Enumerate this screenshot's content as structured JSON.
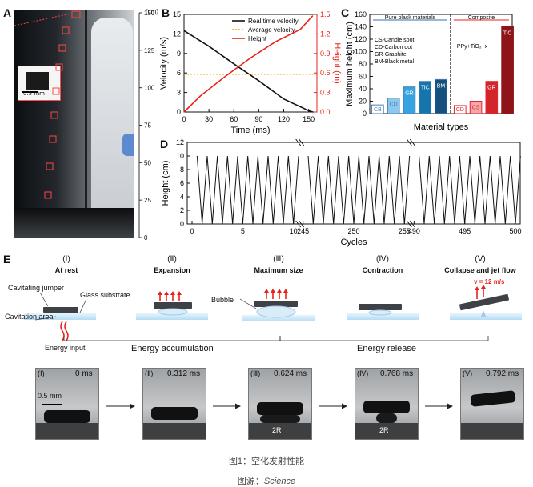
{
  "panel_labels": [
    "A",
    "B",
    "C",
    "D",
    "E"
  ],
  "panelA": {
    "scale_unit": "(cm)",
    "scale_ticks": [
      150,
      125,
      100,
      75,
      50,
      25,
      0
    ],
    "inset_scale": "0.5 mm"
  },
  "chart_data": [
    {
      "type": "line",
      "panel": "B",
      "xlabel": "Time (ms)",
      "ylabel_left": "Velocity (m/s)",
      "ylabel_right": "Height (m)",
      "xlim": [
        0,
        160
      ],
      "x_ticks": [
        0,
        30,
        60,
        90,
        120,
        150
      ],
      "ylim_left": [
        0,
        15
      ],
      "y_ticks_left": [
        0,
        3,
        6,
        9,
        12,
        15
      ],
      "ylim_right": [
        0,
        1.5
      ],
      "y_ticks_right": [
        0.0,
        0.3,
        0.6,
        0.9,
        1.2,
        1.5
      ],
      "series": [
        {
          "name": "Real time velocity",
          "color": "#111111",
          "axis": "left",
          "x": [
            0,
            10,
            30,
            60,
            90,
            120,
            150,
            155
          ],
          "y": [
            12.5,
            11.7,
            10.1,
            7.4,
            4.8,
            2.0,
            0.2,
            0.0
          ]
        },
        {
          "name": "Average velocity",
          "color": "#f2a600",
          "axis": "left",
          "dash": "dotted",
          "x": [
            0,
            160
          ],
          "y": [
            5.8,
            5.8
          ]
        },
        {
          "name": "Height",
          "color": "#e8221b",
          "axis": "right",
          "x": [
            0,
            20,
            50,
            80,
            110,
            140,
            155
          ],
          "y": [
            0.0,
            0.25,
            0.55,
            0.83,
            1.08,
            1.27,
            1.48
          ]
        }
      ]
    },
    {
      "type": "bar",
      "panel": "C",
      "xlabel": "Material types",
      "ylabel": "Maximum height (cm)",
      "ylim": [
        0,
        160
      ],
      "y_ticks": [
        0,
        20,
        40,
        60,
        80,
        100,
        120,
        140,
        160
      ],
      "categories": [
        "CB",
        "CD",
        "GR",
        "TiC",
        "BM",
        "CD",
        "CS",
        "GR",
        "TiC"
      ],
      "values": [
        14,
        25,
        43,
        52,
        55,
        13,
        20,
        52,
        140
      ],
      "colors": [
        "#ffffff",
        "#8cc9ef",
        "#36a3e0",
        "#1775ad",
        "#15517e",
        "#ffffff",
        "#f6a7a9",
        "#d3242b",
        "#8e1419"
      ],
      "edge_colors": [
        "#4e7fb0",
        "#4e7fb0",
        "#4e7fb0",
        "#4e7fb0",
        "#4e7fb0",
        "#e8222b",
        "#e8222b",
        "#e8222b",
        "#8e1419"
      ],
      "group_labels": [
        "Pure black materials",
        "Composite"
      ],
      "notes": [
        "CS-Candle soot",
        "CD-Carbon dot",
        "GR-Graphite",
        "BM-Black metal"
      ],
      "composite_formula": "PPy+TiO₂+x"
    },
    {
      "type": "line",
      "panel": "D",
      "xlabel": "Cycles",
      "ylabel": "Height (cm)",
      "ylim": [
        0,
        12
      ],
      "y_ticks": [
        0,
        2,
        4,
        6,
        8,
        10,
        12
      ],
      "peak": 10,
      "segments": [
        {
          "x_ticks": [
            0,
            5,
            10
          ],
          "range": [
            0,
            10
          ]
        },
        {
          "x_ticks": [
            245,
            250,
            255
          ],
          "range": [
            245,
            255
          ]
        },
        {
          "x_ticks": [
            490,
            495,
            500
          ],
          "range": [
            490,
            500
          ]
        }
      ]
    }
  ],
  "panelE": {
    "stages": [
      {
        "roman": "(Ⅰ)",
        "title": "At rest"
      },
      {
        "roman": "(Ⅱ)",
        "title": "Expansion"
      },
      {
        "roman": "(Ⅲ)",
        "title": "Maximum size"
      },
      {
        "roman": "(Ⅳ)",
        "title": "Contraction"
      },
      {
        "roman": "(Ⅴ)",
        "title": "Collapse and jet flow"
      }
    ],
    "labels": {
      "cavitating_jumper": "Cavitating jumper",
      "glass_substrate": "Glass substrate",
      "cavitation_area": "Cavitation area",
      "energy_input": "Energy input",
      "bubble": "Bubble",
      "velocity": "v = 12 m/s",
      "energy_accumulation": "Energy accumulation",
      "energy_release": "Energy release"
    },
    "frames": [
      {
        "roman": "(Ⅰ)",
        "time": "0 ms"
      },
      {
        "roman": "(Ⅱ)",
        "time": "0.312 ms"
      },
      {
        "roman": "(Ⅲ)",
        "time": "0.624 ms",
        "annotation": "2R"
      },
      {
        "roman": "(Ⅳ)",
        "time": "0.768 ms",
        "annotation": "2R"
      },
      {
        "roman": "(Ⅴ)",
        "time": "0.792 ms"
      }
    ],
    "scale_bar": "0.5 mm"
  },
  "captions": {
    "figure": "图1：空化发射性能",
    "source_label": "图源：",
    "source": "Science"
  }
}
